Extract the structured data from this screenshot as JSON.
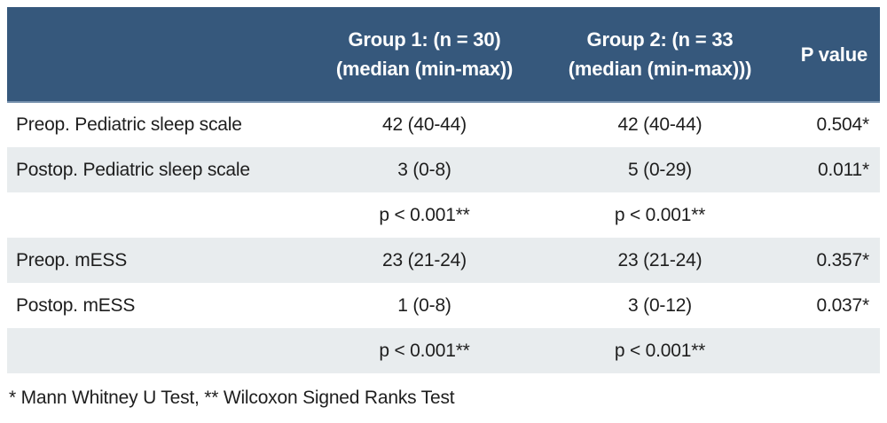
{
  "colors": {
    "header_bg": "#36587c",
    "header_border": "#7590ad",
    "stripe_bg": "#e8ecee",
    "text_color": "#1e1e1e",
    "header_text": "#ffffff",
    "page_bg": "#ffffff"
  },
  "table": {
    "header": {
      "empty": "",
      "group1_line1": "Group 1: (n = 30)",
      "group1_line2": "(median (min-max))",
      "group2_line1": "Group 2: (n = 33",
      "group2_line2": "(median (min-max)))",
      "p_value": "P value"
    },
    "rows": [
      {
        "label": "Preop. Pediatric sleep scale",
        "group1": "42 (40-44)",
        "group2": "42 (40-44)",
        "p": "0.504*"
      },
      {
        "label": "Postop. Pediatric sleep scale",
        "group1": "3 (0-8)",
        "group2": "5 (0-29)",
        "p": "0.011*"
      },
      {
        "label": "",
        "group1": "p < 0.001**",
        "group2": "p < 0.001**",
        "p": ""
      },
      {
        "label": "Preop. mESS",
        "group1": "23 (21-24)",
        "group2": "23 (21-24)",
        "p": "0.357*"
      },
      {
        "label": "Postop. mESS",
        "group1": "1 (0-8)",
        "group2": "3 (0-12)",
        "p": "0.037*"
      },
      {
        "label": "",
        "group1": "p < 0.001**",
        "group2": "p < 0.001**",
        "p": ""
      }
    ],
    "footnote": "* Mann Whitney U Test, ** Wilcoxon Signed Ranks Test"
  },
  "chart_data": {
    "type": "table",
    "title": "",
    "columns": [
      "",
      "Group 1: (n = 30) (median (min-max))",
      "Group 2: (n = 33 (median (min-max)))",
      "P value"
    ],
    "rows": [
      [
        "Preop. Pediatric sleep scale",
        "42 (40-44)",
        "42 (40-44)",
        "0.504*"
      ],
      [
        "Postop. Pediatric sleep scale",
        "3 (0-8)",
        "5 (0-29)",
        "0.011*"
      ],
      [
        "",
        "p < 0.001**",
        "p < 0.001**",
        ""
      ],
      [
        "Preop. mESS",
        "23 (21-24)",
        "23 (21-24)",
        "0.357*"
      ],
      [
        "Postop. mESS",
        "1 (0-8)",
        "3 (0-12)",
        "0.037*"
      ],
      [
        "",
        "p < 0.001**",
        "p < 0.001**",
        ""
      ]
    ],
    "footnote": "* Mann Whitney U Test, ** Wilcoxon Signed Ranks Test"
  }
}
